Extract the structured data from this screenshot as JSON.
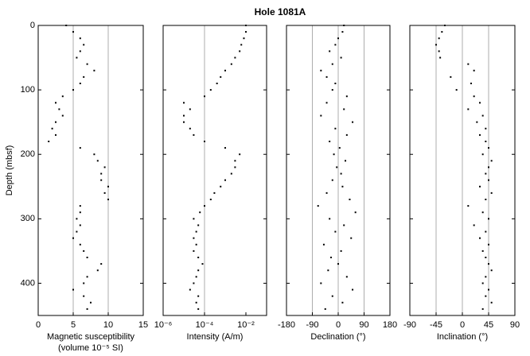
{
  "chart_data": [
    {
      "type": "scatter",
      "title": "Hole 1081A",
      "xlabel": [
        "Magnetic susceptibility",
        "(volume 10⁻⁵ SI)"
      ],
      "ylabel": "Depth (mbsf)",
      "xlim": [
        0,
        15
      ],
      "xticks": [
        0,
        5,
        10,
        15
      ],
      "ylim": [
        0,
        450
      ],
      "yticks": [
        0,
        100,
        200,
        300,
        400
      ],
      "ytick_labels": true,
      "grid": true,
      "log_x": false,
      "color": "#000000",
      "x": [
        4,
        5,
        6,
        6.5,
        6,
        5.5,
        7,
        8,
        6.5,
        6,
        5,
        3.5,
        2.5,
        3,
        3.5,
        2.5,
        2,
        2.5,
        1.5,
        6,
        8,
        8.5,
        9.5,
        9,
        9,
        10,
        9.5,
        10,
        6,
        6,
        5.5,
        6,
        5.5,
        5,
        6,
        6.5,
        7,
        9,
        8.5,
        7,
        6.5,
        5,
        6.5,
        7.5,
        7
      ],
      "y": [
        0,
        10,
        20,
        30,
        40,
        50,
        60,
        70,
        80,
        90,
        100,
        110,
        120,
        130,
        140,
        150,
        160,
        170,
        180,
        190,
        200,
        210,
        220,
        230,
        240,
        250,
        260,
        270,
        280,
        290,
        300,
        310,
        320,
        330,
        340,
        350,
        360,
        370,
        380,
        390,
        400,
        410,
        420,
        430,
        440
      ]
    },
    {
      "type": "scatter",
      "xlabel": [
        "Intensity (A/m)"
      ],
      "xlim": [
        1e-06,
        0.1
      ],
      "xticks": [
        {
          "value": 1e-06,
          "label": "10⁻⁶"
        },
        {
          "value": 0.0001,
          "label": "10⁻⁴"
        },
        {
          "value": 0.01,
          "label": "10⁻²"
        }
      ],
      "ylim": [
        0,
        450
      ],
      "yticks": [
        0,
        100,
        200,
        300,
        400
      ],
      "ytick_labels": false,
      "grid": true,
      "log_x": true,
      "color": "#000000",
      "x": [
        0.01,
        0.01,
        0.008,
        0.006,
        0.005,
        0.003,
        0.002,
        0.001,
        0.0006,
        0.0004,
        0.0002,
        0.0001,
        1e-05,
        2e-05,
        1e-05,
        1e-05,
        2e-05,
        3e-05,
        0.0001,
        0.001,
        0.005,
        0.003,
        0.003,
        0.002,
        0.001,
        0.0006,
        0.0003,
        0.0002,
        0.0001,
        6e-05,
        3e-05,
        5e-05,
        4e-05,
        3e-05,
        4e-05,
        3e-05,
        5e-05,
        8e-05,
        5e-05,
        4e-05,
        3e-05,
        2e-05,
        5e-05,
        4e-05,
        5e-05
      ],
      "y": [
        0,
        10,
        20,
        30,
        40,
        50,
        60,
        70,
        80,
        90,
        100,
        110,
        120,
        130,
        140,
        150,
        160,
        170,
        180,
        190,
        200,
        210,
        220,
        230,
        240,
        250,
        260,
        270,
        280,
        290,
        300,
        310,
        320,
        330,
        340,
        350,
        360,
        370,
        380,
        390,
        400,
        410,
        420,
        430,
        440
      ]
    },
    {
      "type": "scatter",
      "xlabel": [
        "Declination (°)"
      ],
      "xlim": [
        -180,
        180
      ],
      "xticks": [
        -180,
        -90,
        0,
        90,
        180
      ],
      "ylim": [
        0,
        450
      ],
      "yticks": [
        0,
        100,
        200,
        300,
        400
      ],
      "ytick_labels": false,
      "grid": true,
      "log_x": false,
      "color": "#000000",
      "x": [
        20,
        15,
        0,
        -10,
        -30,
        10,
        -20,
        -60,
        -40,
        -10,
        -20,
        30,
        -40,
        20,
        -60,
        50,
        -10,
        30,
        -30,
        5,
        -15,
        25,
        -5,
        10,
        -20,
        15,
        -40,
        40,
        -70,
        60,
        -30,
        20,
        -10,
        45,
        -50,
        10,
        -25,
        0,
        -35,
        30,
        -60,
        50,
        -20,
        15,
        -45
      ],
      "y": [
        0,
        10,
        20,
        30,
        40,
        50,
        60,
        70,
        80,
        90,
        100,
        110,
        120,
        130,
        140,
        150,
        160,
        170,
        180,
        190,
        200,
        210,
        220,
        230,
        240,
        250,
        260,
        270,
        280,
        290,
        300,
        310,
        320,
        330,
        340,
        350,
        360,
        370,
        380,
        390,
        400,
        410,
        420,
        430,
        440
      ]
    },
    {
      "type": "scatter",
      "xlabel": [
        "Inclination (°)"
      ],
      "xlim": [
        -90,
        90
      ],
      "xticks": [
        -90,
        -45,
        0,
        45,
        90
      ],
      "ylim": [
        0,
        450
      ],
      "yticks": [
        0,
        100,
        200,
        300,
        400
      ],
      "ytick_labels": false,
      "grid": true,
      "log_x": false,
      "color": "#000000",
      "x": [
        -30,
        -35,
        -40,
        -45,
        -40,
        -38,
        10,
        20,
        -20,
        15,
        -10,
        20,
        30,
        10,
        35,
        25,
        40,
        30,
        40,
        45,
        35,
        50,
        45,
        40,
        45,
        30,
        50,
        40,
        10,
        35,
        45,
        20,
        40,
        30,
        45,
        35,
        40,
        45,
        50,
        40,
        35,
        45,
        40,
        50,
        35
      ],
      "y": [
        0,
        10,
        20,
        30,
        40,
        50,
        60,
        70,
        80,
        90,
        100,
        110,
        120,
        130,
        140,
        150,
        160,
        170,
        180,
        190,
        200,
        210,
        220,
        230,
        240,
        250,
        260,
        270,
        280,
        290,
        300,
        310,
        320,
        330,
        340,
        350,
        360,
        370,
        380,
        390,
        400,
        410,
        420,
        430,
        440
      ]
    }
  ]
}
